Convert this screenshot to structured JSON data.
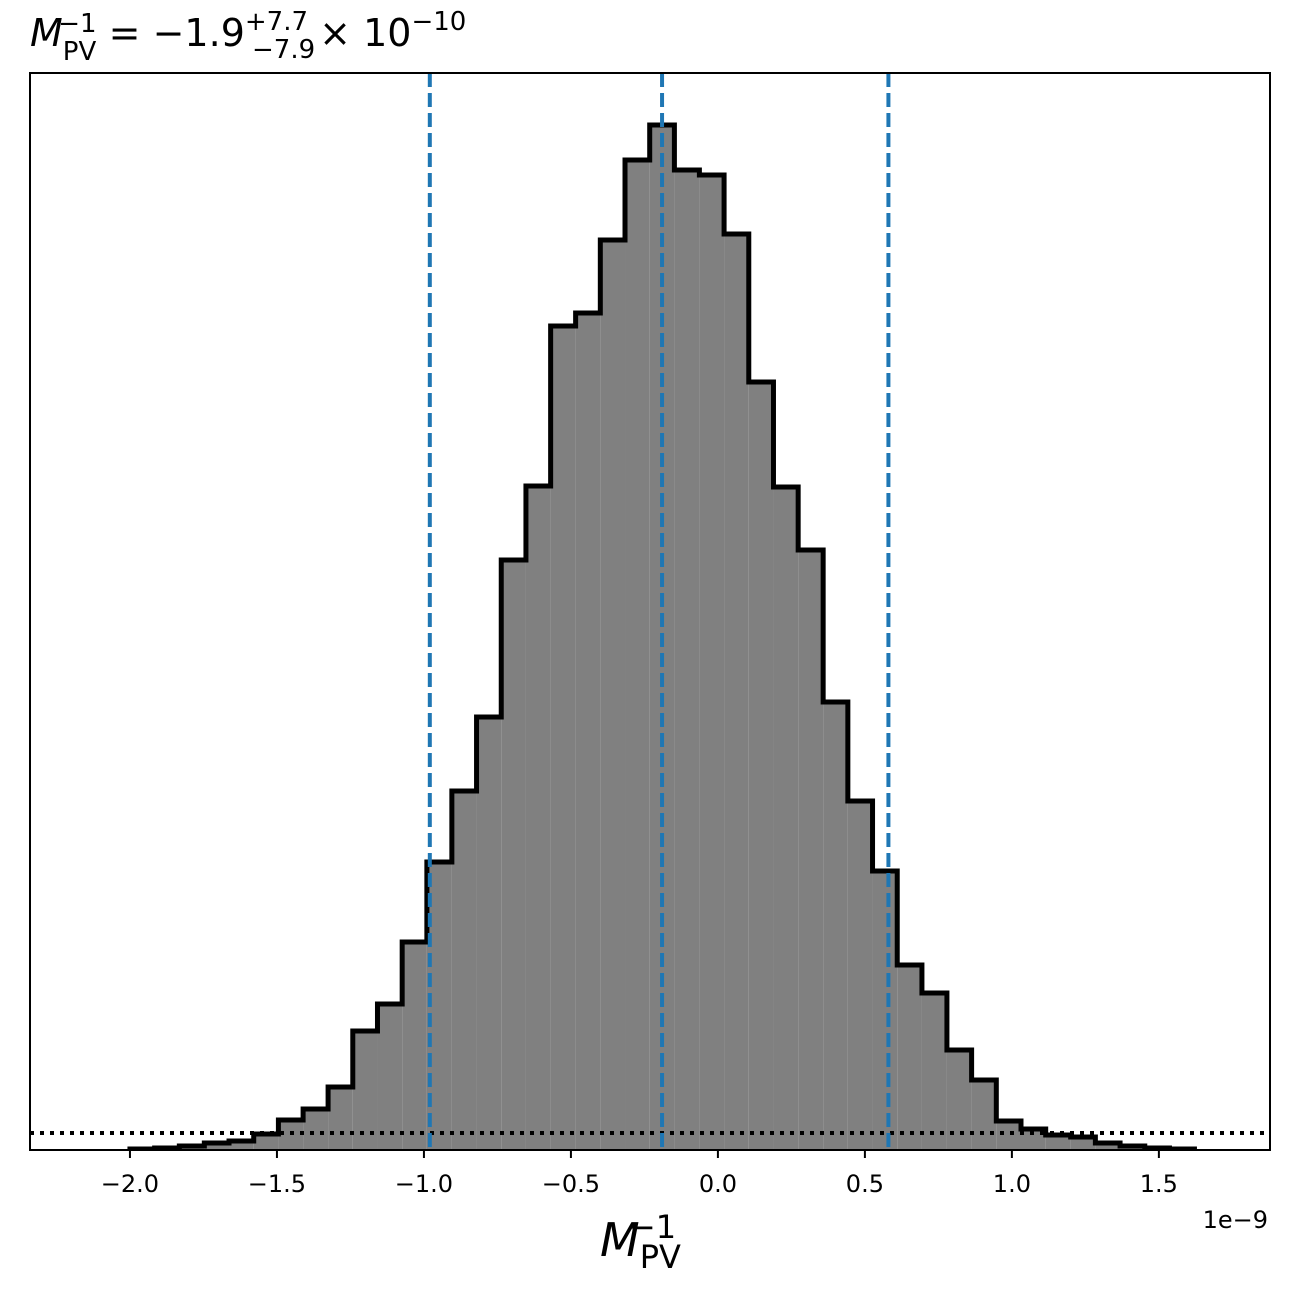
{
  "chart_data": {
    "type": "histogram",
    "title": {
      "symbol": "M",
      "sub": "PV",
      "sup": "−1",
      "eq": " = −1.9",
      "up": "+7.7",
      "low": "−7.9",
      "times": "× 10",
      "exp": "−10"
    },
    "x_label": {
      "symbol": "M",
      "sub": "PV",
      "sup": "−1"
    },
    "x_offset": "1e−9",
    "bins": [
      -2.0,
      -1.916,
      -1.832,
      -1.747,
      -1.663,
      -1.579,
      -1.495,
      -1.411,
      -1.326,
      -1.242,
      -1.158,
      -1.074,
      -0.99,
      -0.905,
      -0.821,
      -0.737,
      -0.653,
      -0.569,
      -0.484,
      -0.4,
      -0.316,
      -0.232,
      -0.148,
      -0.063,
      0.021,
      0.105,
      0.189,
      0.273,
      0.358,
      0.442,
      0.526,
      0.61,
      0.694,
      0.779,
      0.863,
      0.947,
      1.031,
      1.115,
      1.2,
      1.284,
      1.368,
      1.452,
      1.536,
      1.621
    ],
    "values": [
      1,
      2,
      4,
      7,
      9,
      16,
      30,
      41,
      63,
      119,
      146,
      208,
      288,
      359,
      433,
      590,
      664,
      824,
      837,
      910,
      990,
      1025,
      980,
      975,
      916,
      768,
      663,
      600,
      448,
      349,
      279,
      185,
      157,
      100,
      70,
      29,
      21,
      15,
      13,
      7,
      4,
      2,
      1
    ],
    "color": "#808080",
    "edge_color": "#000000",
    "quantile_lines": [
      -0.98,
      -0.19,
      0.58
    ],
    "quantile_color": "#1f77b4",
    "hline": 17,
    "xlim": [
      -2.34,
      1.878
    ],
    "ylim": [
      0,
      1077
    ],
    "xticks": [
      {
        "value": -2,
        "label": "−2.0"
      },
      {
        "value": -1.5,
        "label": "−1.5"
      },
      {
        "value": -1,
        "label": "−1.0"
      },
      {
        "value": -0.5,
        "label": "−0.5"
      },
      {
        "value": 0,
        "label": "0.0"
      },
      0.5,
      {
        "value": 1,
        "label": "1.0"
      },
      1.5
    ]
  }
}
